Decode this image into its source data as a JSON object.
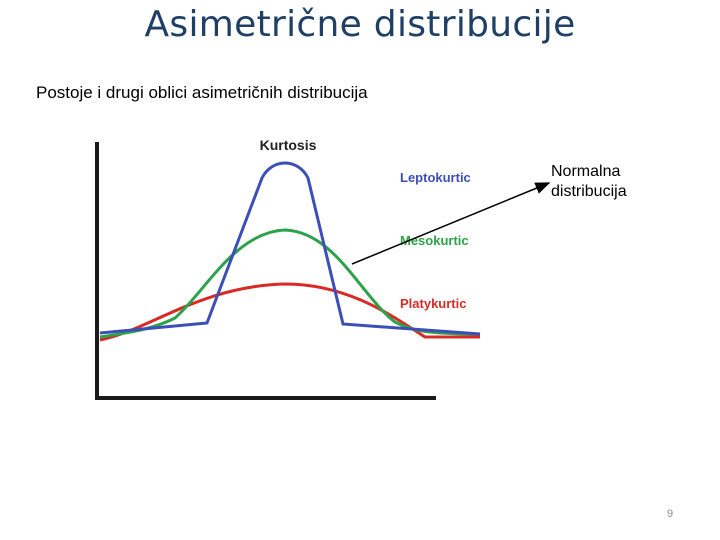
{
  "slide": {
    "title": "Asimetrične distribucije",
    "subtitle": "Postoje i drugi oblici asimetričnih distribucija",
    "annotation_line1": "Normalna",
    "annotation_line2": "distribucija",
    "page_number": "9"
  },
  "figure": {
    "heading": "Kurtosis",
    "labels": {
      "leptokurtic": "Leptokurtic",
      "mesokurtic": "Mesokurtic",
      "platykurtic": "Platykurtic"
    },
    "colors": {
      "leptokurtic": "#3c4fb8",
      "mesokurtic": "#2ca24a",
      "platykurtic": "#d92b26",
      "axes": "#1a1a1a",
      "arrow": "#000000"
    }
  }
}
